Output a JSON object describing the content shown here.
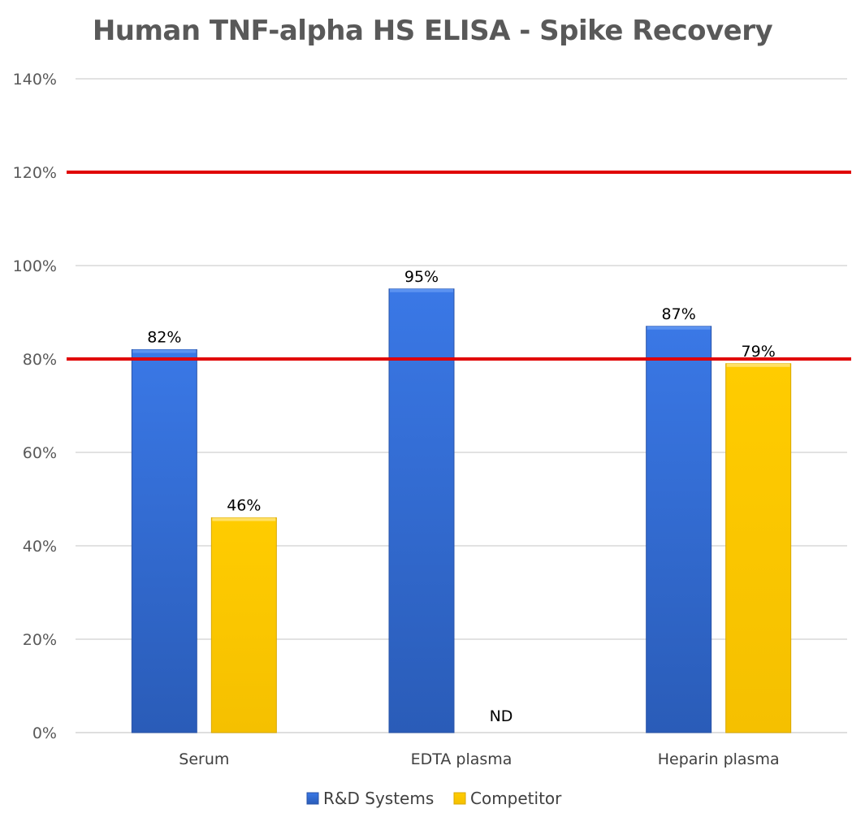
{
  "chart_data": {
    "type": "bar",
    "title": "Human TNF-alpha HS ELISA - Spike Recovery",
    "xlabel": "",
    "ylabel": "",
    "categories": [
      "Serum",
      "EDTA plasma",
      "Heparin plasma"
    ],
    "series": [
      {
        "name": "R&D Systems",
        "values": [
          82,
          95,
          87
        ],
        "labels": [
          "82%",
          "95%",
          "87%"
        ],
        "color": "#3b72d6"
      },
      {
        "name": "Competitor",
        "values": [
          46,
          null,
          79
        ],
        "labels": [
          "46%",
          "ND",
          "79%"
        ],
        "color": "#ffc800"
      }
    ],
    "ylim": [
      0,
      140
    ],
    "yticks": [
      0,
      20,
      40,
      60,
      80,
      100,
      120,
      140
    ],
    "ytick_labels": [
      "0%",
      "20%",
      "40%",
      "60%",
      "80%",
      "100%",
      "120%",
      "140%"
    ],
    "reference_lines": [
      {
        "value": 80,
        "color": "#e00000"
      },
      {
        "value": 120,
        "color": "#e00000"
      }
    ],
    "grid": true,
    "legend_position": "bottom"
  }
}
